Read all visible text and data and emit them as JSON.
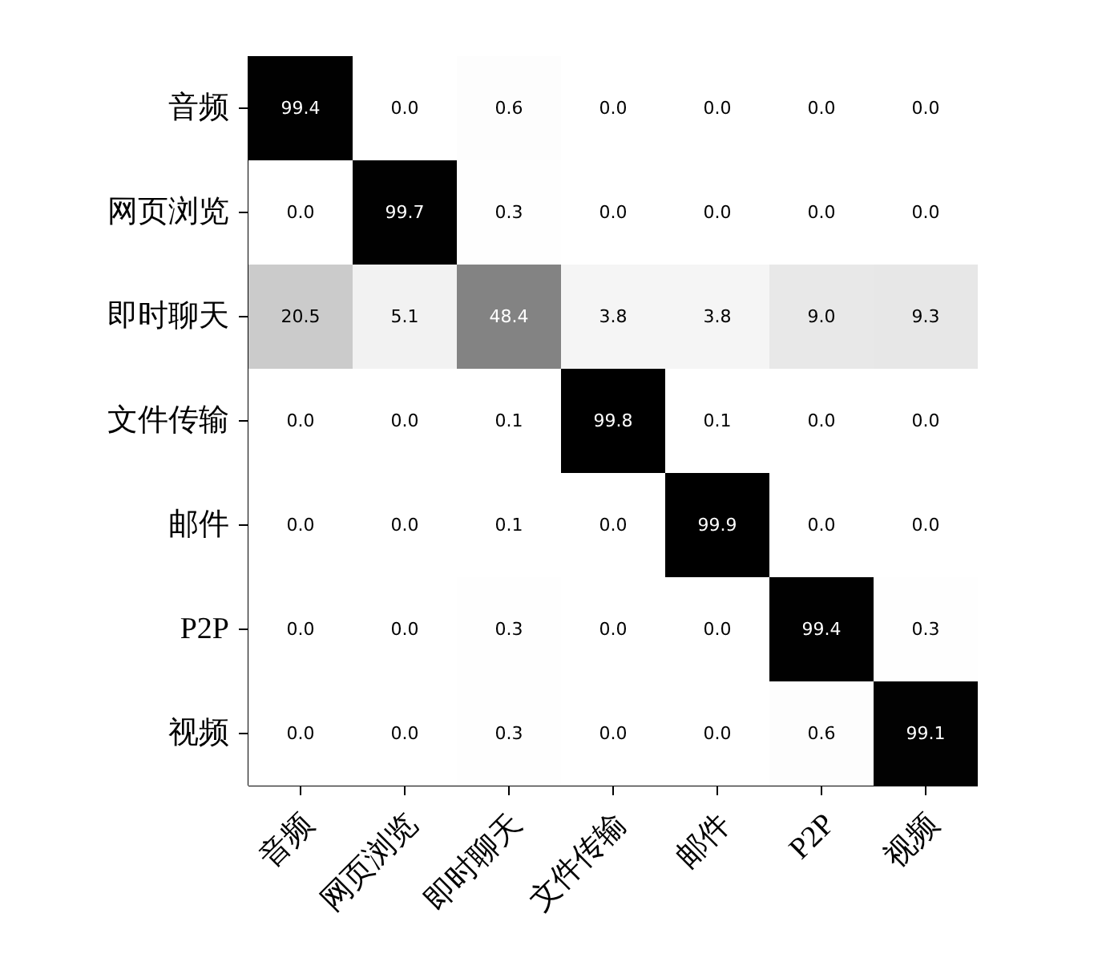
{
  "chart_data": {
    "type": "heatmap",
    "categories": [
      "音频",
      "网页浏览",
      "即时聊天",
      "文件传输",
      "邮件",
      "P2P",
      "视频"
    ],
    "y_categories": [
      "音频",
      "网页浏览",
      "即时聊天",
      "文件传输",
      "邮件",
      "P2P",
      "视频"
    ],
    "cells": [
      [
        99.4,
        0.0,
        0.6,
        0.0,
        0.0,
        0.0,
        0.0
      ],
      [
        0.0,
        99.7,
        0.3,
        0.0,
        0.0,
        0.0,
        0.0
      ],
      [
        20.5,
        5.1,
        48.4,
        3.8,
        3.8,
        9.0,
        9.3
      ],
      [
        0.0,
        0.0,
        0.1,
        99.8,
        0.1,
        0.0,
        0.0
      ],
      [
        0.0,
        0.0,
        0.1,
        0.0,
        99.9,
        0.0,
        0.0
      ],
      [
        0.0,
        0.0,
        0.3,
        0.0,
        0.0,
        99.4,
        0.3
      ],
      [
        0.0,
        0.0,
        0.3,
        0.0,
        0.0,
        0.6,
        99.1
      ]
    ],
    "cell_labels": [
      [
        "99.4",
        "0.0",
        "0.6",
        "0.0",
        "0.0",
        "0.0",
        "0.0"
      ],
      [
        "0.0",
        "99.7",
        "0.3",
        "0.0",
        "0.0",
        "0.0",
        "0.0"
      ],
      [
        "20.5",
        "5.1",
        "48.4",
        "3.8",
        "3.8",
        "9.0",
        "9.3"
      ],
      [
        "0.0",
        "0.0",
        "0.1",
        "99.8",
        "0.1",
        "0.0",
        "0.0"
      ],
      [
        "0.0",
        "0.0",
        "0.1",
        "0.0",
        "99.9",
        "0.0",
        "0.0"
      ],
      [
        "0.0",
        "0.0",
        "0.3",
        "0.0",
        "0.0",
        "99.4",
        "0.3"
      ],
      [
        "0.0",
        "0.0",
        "0.3",
        "0.0",
        "0.0",
        "0.6",
        "99.1"
      ]
    ],
    "data_labels": true
  }
}
